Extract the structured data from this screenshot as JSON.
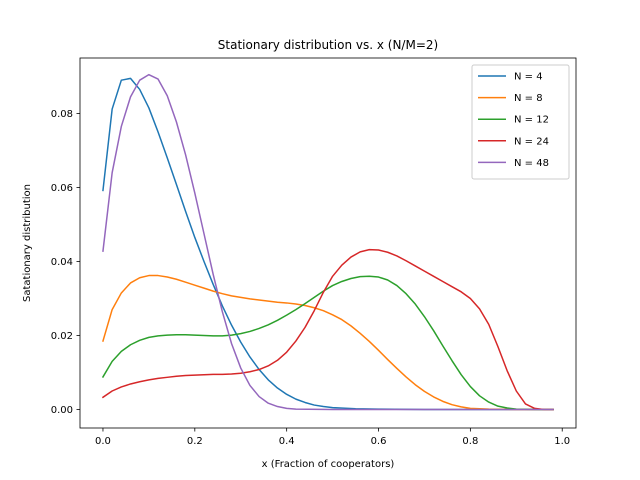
{
  "chart_data": {
    "type": "line",
    "title": "Stationary distribution vs. x (N/M=2)",
    "xlabel": "x (Fraction of cooperators)",
    "ylabel": "Satationary distribution",
    "xlim": [
      -0.05,
      1.03
    ],
    "ylim": [
      -0.005,
      0.095
    ],
    "xticks": [
      0.0,
      0.2,
      0.4,
      0.6,
      0.8,
      1.0
    ],
    "xtick_labels": [
      "0.0",
      "0.2",
      "0.4",
      "0.6",
      "0.8",
      "1.0"
    ],
    "yticks": [
      0.0,
      0.02,
      0.04,
      0.06,
      0.08
    ],
    "ytick_labels": [
      "0.00",
      "0.02",
      "0.04",
      "0.06",
      "0.08"
    ],
    "grid": false,
    "legend_position": "top-right",
    "series": [
      {
        "name": "N = 4",
        "color": "#1f77b4",
        "points": [
          [
            0.0,
            0.0592
          ],
          [
            0.02,
            0.0812
          ],
          [
            0.04,
            0.089
          ],
          [
            0.06,
            0.0895
          ],
          [
            0.08,
            0.0865
          ],
          [
            0.1,
            0.0815
          ],
          [
            0.12,
            0.075
          ],
          [
            0.14,
            0.068
          ],
          [
            0.16,
            0.0608
          ],
          [
            0.18,
            0.0535
          ],
          [
            0.2,
            0.0465
          ],
          [
            0.22,
            0.04
          ],
          [
            0.24,
            0.0338
          ],
          [
            0.26,
            0.028
          ],
          [
            0.28,
            0.0228
          ],
          [
            0.3,
            0.0182
          ],
          [
            0.32,
            0.0142
          ],
          [
            0.34,
            0.0108
          ],
          [
            0.36,
            0.008
          ],
          [
            0.38,
            0.0058
          ],
          [
            0.4,
            0.0041
          ],
          [
            0.42,
            0.0028
          ],
          [
            0.44,
            0.0019
          ],
          [
            0.46,
            0.0012
          ],
          [
            0.48,
            0.0008
          ],
          [
            0.5,
            0.0005
          ],
          [
            0.55,
            0.0002
          ],
          [
            0.6,
            0.0001
          ],
          [
            0.7,
            0.0
          ],
          [
            0.8,
            0.0
          ],
          [
            0.9,
            0.0
          ],
          [
            0.98,
            0.0
          ]
        ]
      },
      {
        "name": "N = 8",
        "color": "#ff7f0e",
        "points": [
          [
            0.0,
            0.0185
          ],
          [
            0.02,
            0.027
          ],
          [
            0.04,
            0.0315
          ],
          [
            0.06,
            0.0342
          ],
          [
            0.08,
            0.0356
          ],
          [
            0.1,
            0.0362
          ],
          [
            0.12,
            0.0362
          ],
          [
            0.14,
            0.0358
          ],
          [
            0.16,
            0.0352
          ],
          [
            0.18,
            0.0344
          ],
          [
            0.2,
            0.0336
          ],
          [
            0.22,
            0.0328
          ],
          [
            0.24,
            0.032
          ],
          [
            0.26,
            0.0313
          ],
          [
            0.28,
            0.0307
          ],
          [
            0.3,
            0.0303
          ],
          [
            0.32,
            0.0299
          ],
          [
            0.34,
            0.0296
          ],
          [
            0.36,
            0.0293
          ],
          [
            0.38,
            0.029
          ],
          [
            0.4,
            0.0288
          ],
          [
            0.42,
            0.0285
          ],
          [
            0.44,
            0.0281
          ],
          [
            0.46,
            0.0275
          ],
          [
            0.48,
            0.0267
          ],
          [
            0.5,
            0.0256
          ],
          [
            0.52,
            0.0243
          ],
          [
            0.54,
            0.0226
          ],
          [
            0.56,
            0.0206
          ],
          [
            0.58,
            0.0184
          ],
          [
            0.6,
            0.016
          ],
          [
            0.62,
            0.0135
          ],
          [
            0.64,
            0.0111
          ],
          [
            0.66,
            0.0088
          ],
          [
            0.68,
            0.0067
          ],
          [
            0.7,
            0.0049
          ],
          [
            0.72,
            0.0034
          ],
          [
            0.74,
            0.0022
          ],
          [
            0.76,
            0.0013
          ],
          [
            0.78,
            0.0007
          ],
          [
            0.8,
            0.0003
          ],
          [
            0.84,
            0.0001
          ],
          [
            0.9,
            0.0
          ],
          [
            0.98,
            0.0
          ]
        ]
      },
      {
        "name": "N = 12",
        "color": "#2ca02c",
        "points": [
          [
            0.0,
            0.0088
          ],
          [
            0.02,
            0.013
          ],
          [
            0.04,
            0.0157
          ],
          [
            0.06,
            0.0175
          ],
          [
            0.08,
            0.0187
          ],
          [
            0.1,
            0.0195
          ],
          [
            0.12,
            0.0199
          ],
          [
            0.14,
            0.0201
          ],
          [
            0.16,
            0.0202
          ],
          [
            0.18,
            0.0202
          ],
          [
            0.2,
            0.0201
          ],
          [
            0.22,
            0.02
          ],
          [
            0.24,
            0.0199
          ],
          [
            0.26,
            0.0199
          ],
          [
            0.28,
            0.0201
          ],
          [
            0.3,
            0.0205
          ],
          [
            0.32,
            0.0211
          ],
          [
            0.34,
            0.0219
          ],
          [
            0.36,
            0.0229
          ],
          [
            0.38,
            0.0241
          ],
          [
            0.4,
            0.0255
          ],
          [
            0.42,
            0.027
          ],
          [
            0.44,
            0.0286
          ],
          [
            0.46,
            0.0303
          ],
          [
            0.48,
            0.032
          ],
          [
            0.5,
            0.0335
          ],
          [
            0.52,
            0.0346
          ],
          [
            0.54,
            0.0354
          ],
          [
            0.56,
            0.0359
          ],
          [
            0.58,
            0.036
          ],
          [
            0.6,
            0.0358
          ],
          [
            0.62,
            0.035
          ],
          [
            0.64,
            0.0335
          ],
          [
            0.66,
            0.0313
          ],
          [
            0.68,
            0.0285
          ],
          [
            0.7,
            0.0251
          ],
          [
            0.72,
            0.0213
          ],
          [
            0.74,
            0.0172
          ],
          [
            0.76,
            0.0132
          ],
          [
            0.78,
            0.0094
          ],
          [
            0.8,
            0.0062
          ],
          [
            0.82,
            0.0037
          ],
          [
            0.84,
            0.002
          ],
          [
            0.86,
            0.0009
          ],
          [
            0.88,
            0.0004
          ],
          [
            0.9,
            0.0001
          ],
          [
            0.95,
            0.0
          ],
          [
            0.98,
            0.0
          ]
        ]
      },
      {
        "name": "N = 24",
        "color": "#d62728",
        "points": [
          [
            0.0,
            0.0033
          ],
          [
            0.02,
            0.005
          ],
          [
            0.04,
            0.0061
          ],
          [
            0.06,
            0.0069
          ],
          [
            0.08,
            0.0075
          ],
          [
            0.1,
            0.008
          ],
          [
            0.12,
            0.0084
          ],
          [
            0.14,
            0.0087
          ],
          [
            0.16,
            0.009
          ],
          [
            0.18,
            0.0092
          ],
          [
            0.2,
            0.0093
          ],
          [
            0.22,
            0.0094
          ],
          [
            0.24,
            0.0095
          ],
          [
            0.26,
            0.0095
          ],
          [
            0.28,
            0.0096
          ],
          [
            0.3,
            0.0098
          ],
          [
            0.32,
            0.0102
          ],
          [
            0.34,
            0.0108
          ],
          [
            0.36,
            0.0118
          ],
          [
            0.38,
            0.0133
          ],
          [
            0.4,
            0.0155
          ],
          [
            0.42,
            0.0185
          ],
          [
            0.44,
            0.0222
          ],
          [
            0.46,
            0.0267
          ],
          [
            0.48,
            0.0317
          ],
          [
            0.5,
            0.036
          ],
          [
            0.52,
            0.039
          ],
          [
            0.54,
            0.0412
          ],
          [
            0.56,
            0.0426
          ],
          [
            0.58,
            0.0432
          ],
          [
            0.6,
            0.0431
          ],
          [
            0.62,
            0.0425
          ],
          [
            0.64,
            0.0415
          ],
          [
            0.66,
            0.0402
          ],
          [
            0.68,
            0.0388
          ],
          [
            0.7,
            0.0374
          ],
          [
            0.72,
            0.036
          ],
          [
            0.74,
            0.0346
          ],
          [
            0.76,
            0.0332
          ],
          [
            0.78,
            0.0318
          ],
          [
            0.8,
            0.03
          ],
          [
            0.82,
            0.0272
          ],
          [
            0.84,
            0.023
          ],
          [
            0.86,
            0.017
          ],
          [
            0.88,
            0.0105
          ],
          [
            0.9,
            0.005
          ],
          [
            0.92,
            0.0015
          ],
          [
            0.94,
            0.0003
          ],
          [
            0.96,
            0.0
          ],
          [
            0.98,
            0.0
          ]
        ]
      },
      {
        "name": "N = 48",
        "color": "#9467bd",
        "points": [
          [
            0.0,
            0.0428
          ],
          [
            0.02,
            0.064
          ],
          [
            0.04,
            0.0765
          ],
          [
            0.06,
            0.0845
          ],
          [
            0.08,
            0.089
          ],
          [
            0.1,
            0.0905
          ],
          [
            0.12,
            0.0893
          ],
          [
            0.14,
            0.0848
          ],
          [
            0.16,
            0.0777
          ],
          [
            0.18,
            0.0688
          ],
          [
            0.2,
            0.0585
          ],
          [
            0.22,
            0.0475
          ],
          [
            0.24,
            0.0365
          ],
          [
            0.26,
            0.0264
          ],
          [
            0.28,
            0.0178
          ],
          [
            0.3,
            0.0112
          ],
          [
            0.32,
            0.0065
          ],
          [
            0.34,
            0.0035
          ],
          [
            0.36,
            0.0017
          ],
          [
            0.38,
            0.0008
          ],
          [
            0.4,
            0.0003
          ],
          [
            0.42,
            0.0001
          ],
          [
            0.5,
            0.0
          ],
          [
            0.6,
            0.0
          ],
          [
            0.7,
            0.0
          ],
          [
            0.8,
            0.0
          ],
          [
            0.9,
            0.0
          ],
          [
            0.98,
            0.0
          ]
        ]
      }
    ]
  }
}
